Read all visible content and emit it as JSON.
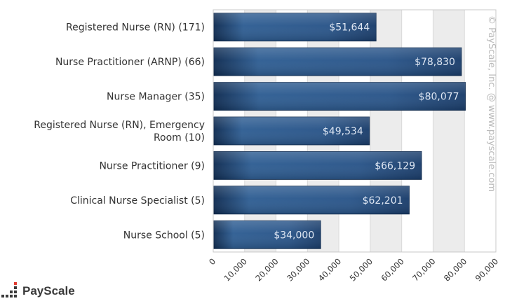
{
  "chart_data": {
    "type": "bar",
    "orientation": "horizontal",
    "categories": [
      "Registered Nurse (RN) (171)",
      "Nurse Practitioner (ARNP) (66)",
      "Nurse Manager (35)",
      "Registered Nurse (RN), Emergency Room (10)",
      "Nurse Practitioner (9)",
      "Clinical Nurse Specialist (5)",
      "Nurse School (5)"
    ],
    "category_lines": [
      [
        "Registered Nurse (RN) (171)"
      ],
      [
        "Nurse Practitioner (ARNP) (66)"
      ],
      [
        "Nurse Manager (35)"
      ],
      [
        "Registered Nurse (RN), Emergency",
        "Room (10)"
      ],
      [
        "Nurse Practitioner (9)"
      ],
      [
        "Clinical Nurse Specialist (5)"
      ],
      [
        "Nurse School (5)"
      ]
    ],
    "values": [
      51644,
      78830,
      80077,
      49534,
      66129,
      62201,
      34000
    ],
    "value_labels": [
      "$51,644",
      "$78,830",
      "$80,077",
      "$49,534",
      "$66,129",
      "$62,201",
      "$34,000"
    ],
    "xlim": [
      0,
      90000
    ],
    "x_ticks": [
      0,
      10000,
      20000,
      30000,
      40000,
      50000,
      60000,
      70000,
      80000,
      90000
    ],
    "x_tick_labels": [
      "0",
      "10,000",
      "20,000",
      "30,000",
      "40,000",
      "50,000",
      "60,000",
      "70,000",
      "80,000",
      "90,000"
    ],
    "grid": true,
    "title": "",
    "xlabel": "",
    "ylabel": "",
    "bar_color": "#2b5a8f",
    "bar_color_dark": "#143560",
    "watermark": "© PayScale, Inc. @ www.payscale.com"
  },
  "logo": {
    "text": "PayScale"
  }
}
